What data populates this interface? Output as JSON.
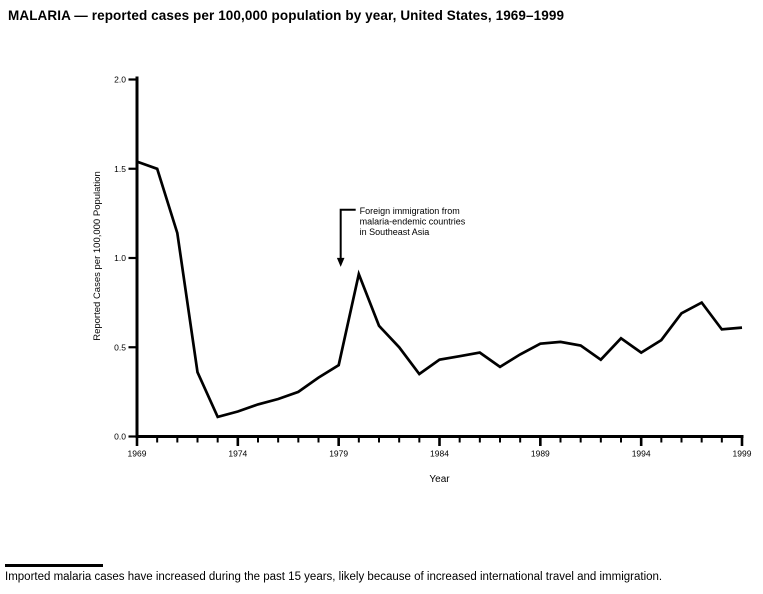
{
  "page": {
    "title": "MALARIA — reported cases per 100,000 population by year, United States, 1969–1999",
    "footnote": "Imported malaria cases have increased during the past 15 years, likely because of increased international travel and immigration."
  },
  "chart_data": {
    "type": "line",
    "title": "MALARIA — reported cases per 100,000 population by year, United States, 1969–1999",
    "xlabel": "Year",
    "ylabel": "Reported Cases per 100,000 Population",
    "xlim": [
      1969,
      1999
    ],
    "ylim": [
      0.0,
      2.0
    ],
    "grid": false,
    "legend": "none",
    "line_color": "#000000",
    "x": [
      1969,
      1970,
      1971,
      1972,
      1973,
      1974,
      1975,
      1976,
      1977,
      1978,
      1979,
      1980,
      1981,
      1982,
      1983,
      1984,
      1985,
      1986,
      1987,
      1988,
      1989,
      1990,
      1991,
      1992,
      1993,
      1994,
      1995,
      1996,
      1997,
      1998,
      1999
    ],
    "values": [
      1.54,
      1.5,
      1.14,
      0.36,
      0.11,
      0.14,
      0.18,
      0.21,
      0.25,
      0.33,
      0.4,
      0.91,
      0.62,
      0.5,
      0.35,
      0.43,
      0.45,
      0.47,
      0.39,
      0.46,
      0.52,
      0.53,
      0.51,
      0.43,
      0.55,
      0.47,
      0.54,
      0.69,
      0.75,
      0.6,
      0.61
    ],
    "yticks": [
      0.0,
      0.5,
      1.0,
      1.5,
      2.0
    ],
    "ytick_labels": [
      "0.0",
      "0.5",
      "1.0",
      "1.5",
      "2.0"
    ],
    "xticks_major": [
      1969,
      1974,
      1979,
      1984,
      1989,
      1994,
      1999
    ],
    "xtick_labels": [
      "1969",
      "1974",
      "1979",
      "1984",
      "1989",
      "1994",
      "1999"
    ],
    "annotation": {
      "lines": [
        "Foreign immigration from",
        "malaria-endemic countries",
        "in Southeast Asia"
      ],
      "arrow_year": 1979.1,
      "bracket_value": 1.27,
      "tip_value": 0.95
    }
  }
}
